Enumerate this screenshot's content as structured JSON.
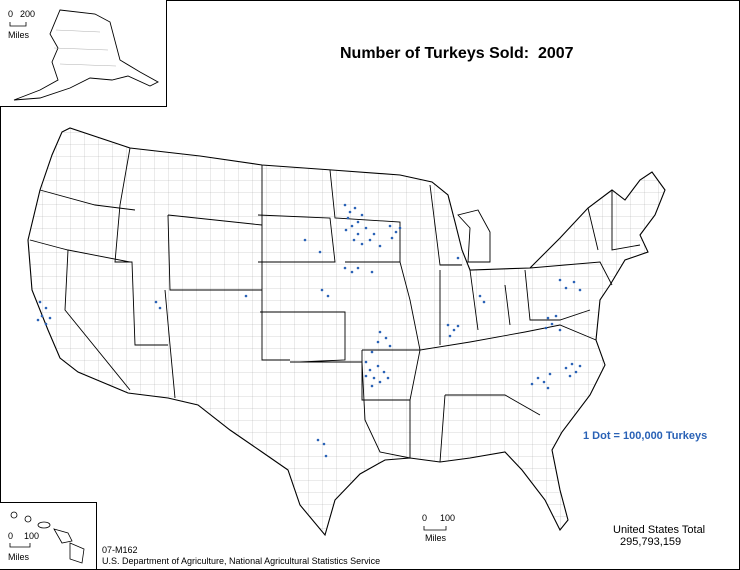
{
  "title": "Number of Turkeys Sold:  2007",
  "legend": {
    "label": "1 Dot = 100,000 Turkeys",
    "dot_color": "#2a62b6"
  },
  "total": {
    "label": "United States Total",
    "value": "295,793,159"
  },
  "credits": {
    "map_id": "07-M162",
    "source": "U.S. Department of Agriculture, National Agricultural Statistics Service"
  },
  "scales": {
    "alaska": {
      "start": "0",
      "end": "200",
      "unit": "Miles"
    },
    "hawaii": {
      "start": "0",
      "end": "100",
      "unit": "Miles"
    },
    "main": {
      "start": "0",
      "end": "100",
      "unit": "Miles"
    }
  },
  "colors": {
    "boundary": "#000000",
    "county": "#9a9a9a",
    "dots": "#2a62b6"
  }
}
